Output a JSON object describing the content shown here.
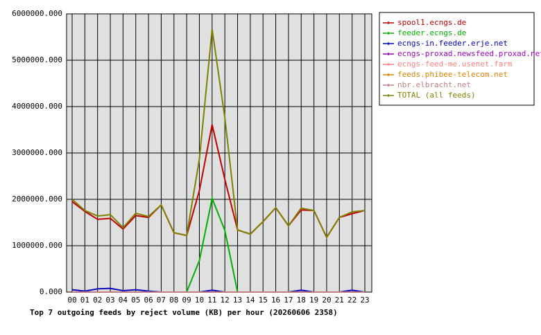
{
  "chart_data": {
    "type": "line",
    "title": "Top 7 outgoing feeds by reject volume (KB) per hour (20260606 2358)",
    "categories": [
      "00",
      "01",
      "02",
      "03",
      "04",
      "05",
      "06",
      "07",
      "08",
      "09",
      "10",
      "11",
      "12",
      "13",
      "14",
      "15",
      "16",
      "17",
      "18",
      "19",
      "20",
      "21",
      "22",
      "23"
    ],
    "ylim": [
      0,
      6000000
    ],
    "yticks": [
      {
        "value": 0,
        "label": "0.000"
      },
      {
        "value": 1000000,
        "label": "1000000.000"
      },
      {
        "value": 2000000,
        "label": "2000000.000"
      },
      {
        "value": 3000000,
        "label": "3000000.000"
      },
      {
        "value": 4000000,
        "label": "4000000.000"
      },
      {
        "value": 5000000,
        "label": "5000000.000"
      },
      {
        "value": 6000000,
        "label": "6000000.000"
      }
    ],
    "grid": true,
    "legend": "right",
    "series": [
      {
        "name": "spool1.ecngs.de",
        "color": "#c00000",
        "values": [
          1950000,
          1740000,
          1570000,
          1590000,
          1360000,
          1650000,
          1610000,
          1880000,
          1280000,
          1220000,
          2190000,
          3610000,
          2430000,
          1340000,
          1250000,
          1520000,
          1820000,
          1430000,
          1770000,
          1760000,
          1180000,
          1610000,
          1690000,
          1760000
        ]
      },
      {
        "name": "feeder.ecngs.de",
        "color": "#00b000",
        "values": [
          0,
          0,
          0,
          0,
          0,
          0,
          0,
          0,
          0,
          0,
          680000,
          2020000,
          1330000,
          0,
          0,
          0,
          0,
          0,
          0,
          0,
          0,
          0,
          0,
          0
        ]
      },
      {
        "name": "ecngs-in.feeder.erje.net",
        "color": "#0000c0",
        "values": [
          50000,
          20000,
          70000,
          80000,
          30000,
          50000,
          20000,
          0,
          0,
          0,
          0,
          40000,
          0,
          0,
          0,
          0,
          0,
          0,
          40000,
          0,
          0,
          0,
          40000,
          0
        ]
      },
      {
        "name": "ecngs-proxad.newsfeed.proxad.net",
        "color": "#a000c0",
        "values": [
          0,
          0,
          0,
          0,
          0,
          0,
          0,
          0,
          0,
          0,
          0,
          0,
          0,
          0,
          0,
          0,
          0,
          0,
          0,
          0,
          0,
          0,
          0,
          0
        ]
      },
      {
        "name": "ecngs-feed-me.usenet.farm",
        "color": "#ff8080",
        "values": [
          0,
          0,
          0,
          0,
          0,
          0,
          0,
          0,
          0,
          0,
          0,
          0,
          0,
          0,
          0,
          0,
          0,
          0,
          0,
          0,
          0,
          0,
          0,
          0
        ]
      },
      {
        "name": "feeds.phibee-telecom.net",
        "color": "#e08000",
        "values": [
          0,
          0,
          0,
          0,
          0,
          0,
          0,
          0,
          0,
          0,
          0,
          0,
          0,
          0,
          0,
          0,
          0,
          0,
          0,
          0,
          0,
          0,
          0,
          0
        ]
      },
      {
        "name": "nbr.elbracht.net",
        "color": "#c08080",
        "values": [
          0,
          0,
          0,
          0,
          0,
          0,
          0,
          0,
          0,
          0,
          0,
          0,
          0,
          0,
          0,
          0,
          0,
          0,
          0,
          0,
          0,
          0,
          0,
          0
        ]
      },
      {
        "name": "TOTAL (all feeds)",
        "color": "#808000",
        "values": [
          2000000,
          1760000,
          1640000,
          1670000,
          1390000,
          1700000,
          1630000,
          1880000,
          1280000,
          1220000,
          2870000,
          5670000,
          3760000,
          1340000,
          1250000,
          1520000,
          1820000,
          1430000,
          1810000,
          1760000,
          1180000,
          1610000,
          1730000,
          1760000
        ]
      }
    ]
  }
}
